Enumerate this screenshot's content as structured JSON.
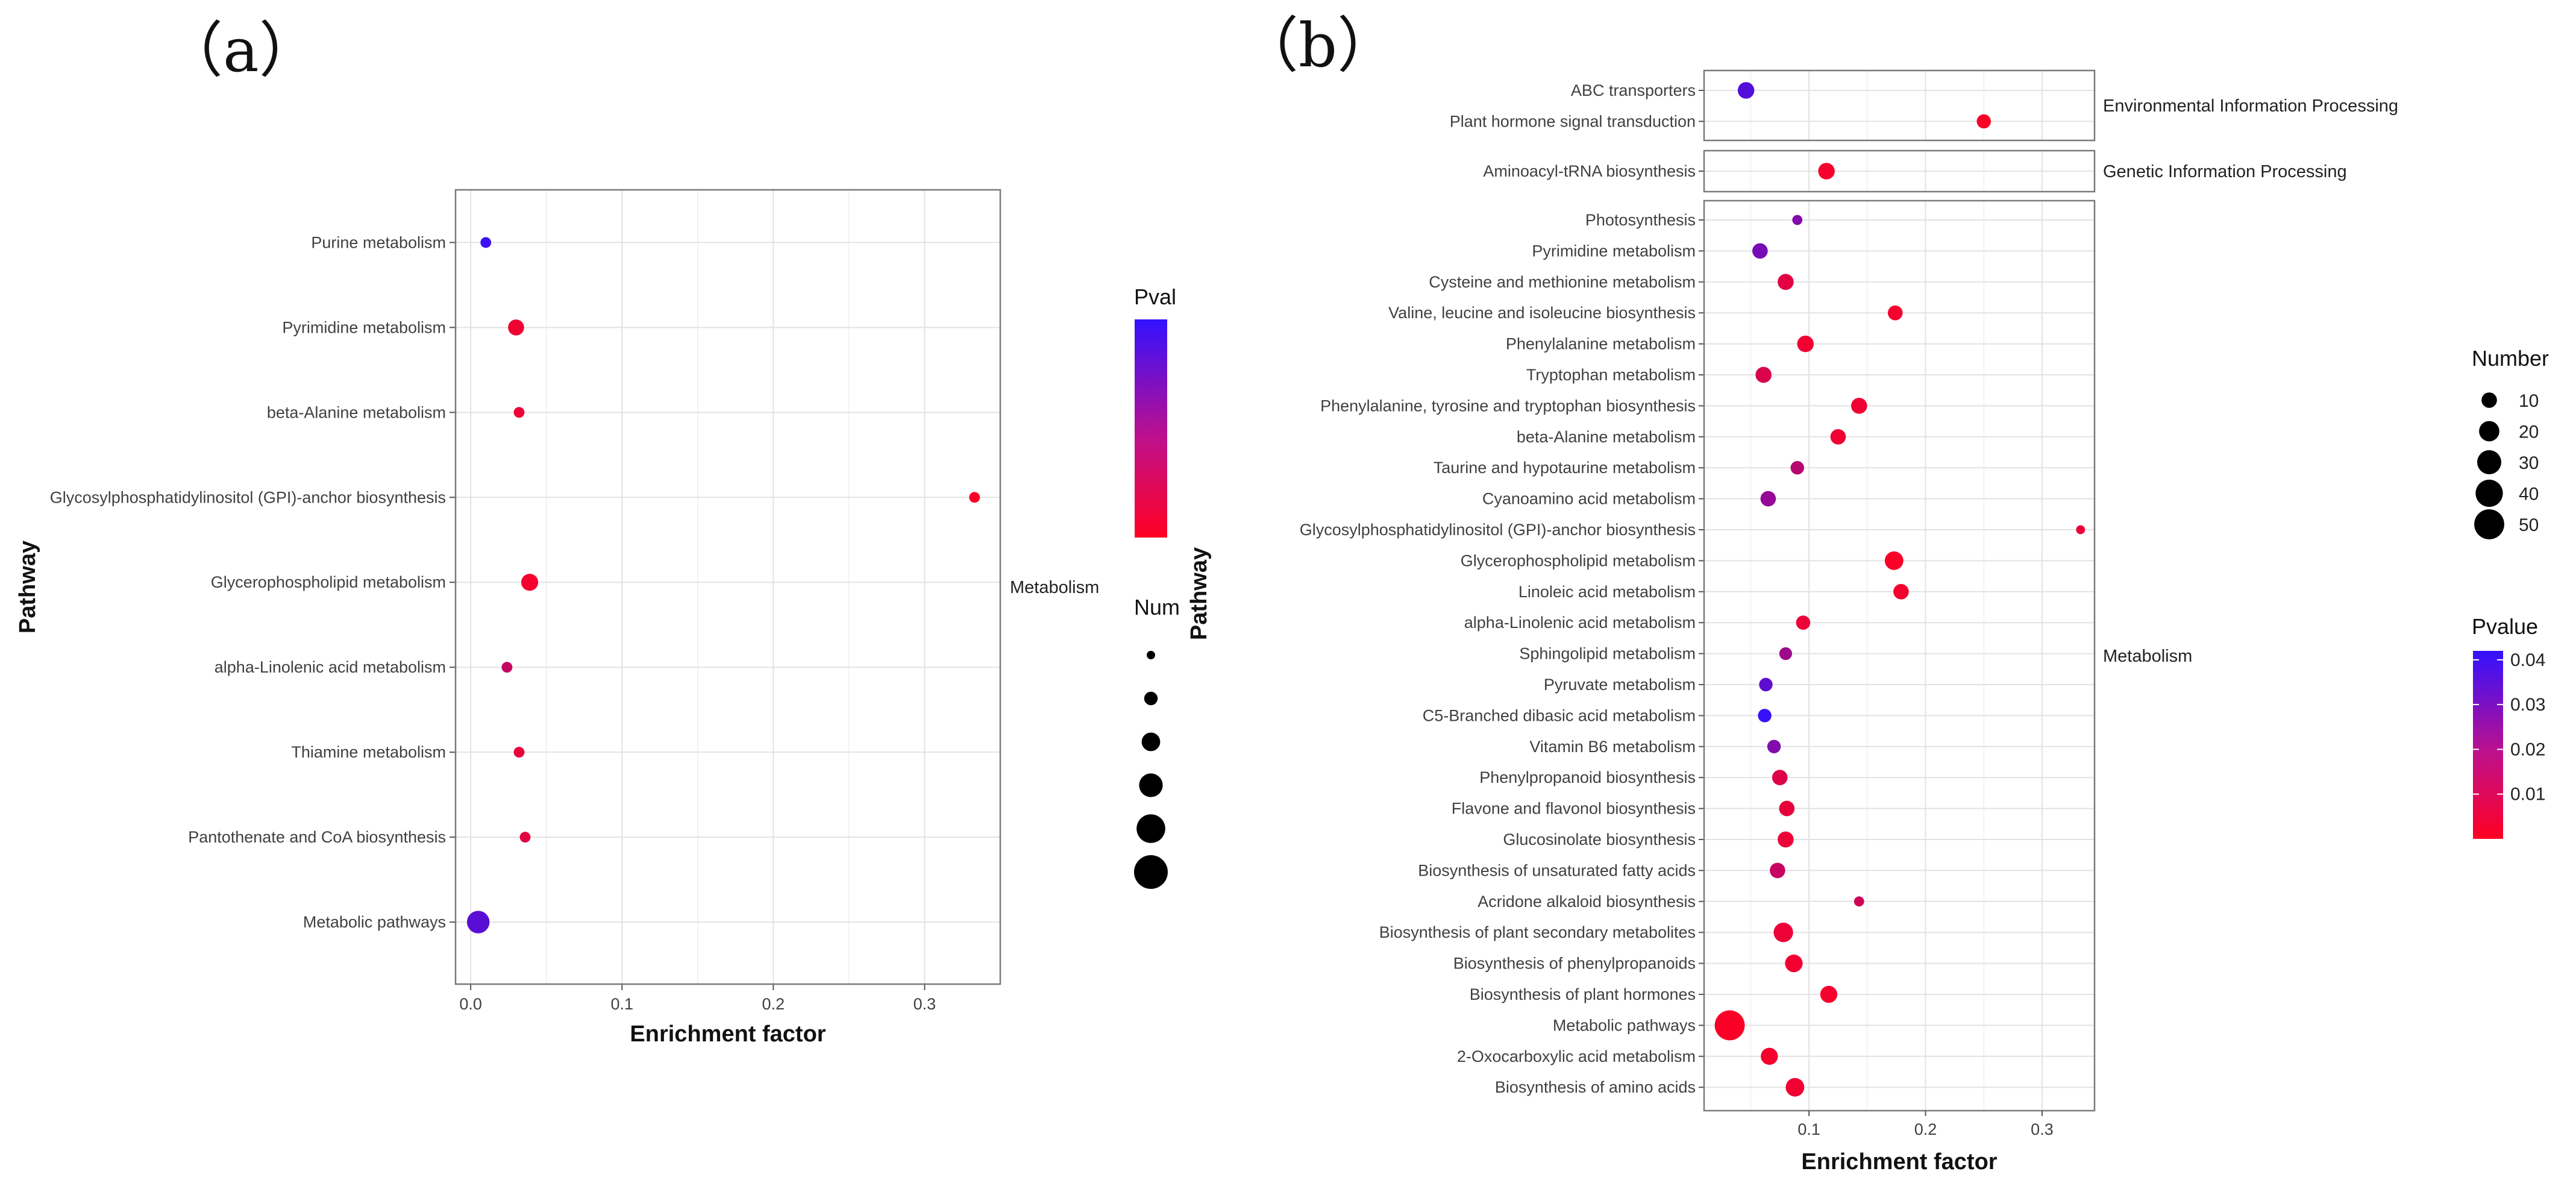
{
  "chart_data": [
    {
      "panel_label": "（a）",
      "type": "scatter",
      "xlabel": "Enrichment factor",
      "ylabel": "Pathway",
      "xlim": [
        -0.01,
        0.35
      ],
      "xticks": [
        "0.0",
        "0.1",
        "0.2",
        "0.3"
      ],
      "xtick_values": [
        0,
        0.1,
        0.2,
        0.3
      ],
      "facet": "Metabolism",
      "pathways": [
        {
          "name": "Purine metabolism",
          "x": 0.01,
          "number": 2,
          "pvalue": 0.04
        },
        {
          "name": "Pyrimidine metabolism",
          "x": 0.03,
          "number": 6,
          "pvalue": 0.003
        },
        {
          "name": "beta-Alanine metabolism",
          "x": 0.032,
          "number": 2,
          "pvalue": 0.004
        },
        {
          "name": "Glycosylphosphatidylinositol (GPI)-anchor biosynthesis",
          "x": 0.333,
          "number": 2,
          "pvalue": 0.001
        },
        {
          "name": "Glycerophospholipid metabolism",
          "x": 0.039,
          "number": 7,
          "pvalue": 0.002
        },
        {
          "name": "alpha-Linolenic acid metabolism",
          "x": 0.024,
          "number": 2,
          "pvalue": 0.012
        },
        {
          "name": "Thiamine metabolism",
          "x": 0.032,
          "number": 2,
          "pvalue": 0.005
        },
        {
          "name": "Pantothenate and CoA biosynthesis",
          "x": 0.036,
          "number": 2,
          "pvalue": 0.006
        },
        {
          "name": "Metabolic pathways",
          "x": 0.005,
          "number": 14,
          "pvalue": 0.034
        }
      ],
      "legend_color_title": "Pval",
      "legend_size_title": "Num",
      "legend_size_count": 6
    },
    {
      "panel_label": "（b）",
      "type": "scatter",
      "xlabel": "Enrichment factor",
      "ylabel": "Pathway",
      "xlim": [
        0.01,
        0.345
      ],
      "xticks": [
        "0.1",
        "0.2",
        "0.3"
      ],
      "xtick_values": [
        0.1,
        0.2,
        0.3
      ],
      "facets": [
        {
          "name": "Environmental Information Processing",
          "pathways": [
            {
              "name": "ABC transporters",
              "x": 0.046,
              "number": 12,
              "pvalue": 0.035
            },
            {
              "name": "Plant hormone signal transduction",
              "x": 0.25,
              "number": 8,
              "pvalue": 0.001
            }
          ]
        },
        {
          "name": "Genetic Information Processing",
          "pathways": [
            {
              "name": "Aminoacyl-tRNA biosynthesis",
              "x": 0.115,
              "number": 12,
              "pvalue": 0.002
            }
          ]
        },
        {
          "name": "Metabolism",
          "pathways": [
            {
              "name": "Photosynthesis",
              "x": 0.09,
              "number": 3,
              "pvalue": 0.026
            },
            {
              "name": "Pyrimidine metabolism",
              "x": 0.058,
              "number": 10,
              "pvalue": 0.028
            },
            {
              "name": "Cysteine and methionine metabolism",
              "x": 0.08,
              "number": 11,
              "pvalue": 0.006
            },
            {
              "name": "Valine, leucine and isoleucine biosynthesis",
              "x": 0.174,
              "number": 9,
              "pvalue": 0.002
            },
            {
              "name": "Phenylalanine metabolism",
              "x": 0.097,
              "number": 12,
              "pvalue": 0.003
            },
            {
              "name": "Tryptophan metabolism",
              "x": 0.061,
              "number": 11,
              "pvalue": 0.008
            },
            {
              "name": "Phenylalanine, tyrosine and tryptophan biosynthesis",
              "x": 0.143,
              "number": 11,
              "pvalue": 0.003
            },
            {
              "name": "beta-Alanine metabolism",
              "x": 0.125,
              "number": 10,
              "pvalue": 0.003
            },
            {
              "name": "Taurine and hypotaurine metabolism",
              "x": 0.09,
              "number": 7,
              "pvalue": 0.015
            },
            {
              "name": "Cyanoamino acid metabolism",
              "x": 0.065,
              "number": 10,
              "pvalue": 0.022
            },
            {
              "name": "Glycosylphosphatidylinositol (GPI)-anchor biosynthesis",
              "x": 0.333,
              "number": 2,
              "pvalue": 0.004
            },
            {
              "name": "Glycerophospholipid metabolism",
              "x": 0.173,
              "number": 16,
              "pvalue": 0.001
            },
            {
              "name": "Linoleic acid metabolism",
              "x": 0.179,
              "number": 10,
              "pvalue": 0.002
            },
            {
              "name": "alpha-Linolenic acid metabolism",
              "x": 0.095,
              "number": 8,
              "pvalue": 0.004
            },
            {
              "name": "Sphingolipid metabolism",
              "x": 0.08,
              "number": 6,
              "pvalue": 0.02
            },
            {
              "name": "Pyruvate metabolism",
              "x": 0.063,
              "number": 7,
              "pvalue": 0.033
            },
            {
              "name": "C5-Branched dibasic acid metabolism",
              "x": 0.062,
              "number": 7,
              "pvalue": 0.041
            },
            {
              "name": "Vitamin B6 metabolism",
              "x": 0.07,
              "number": 7,
              "pvalue": 0.026
            },
            {
              "name": "Phenylpropanoid biosynthesis",
              "x": 0.075,
              "number": 10,
              "pvalue": 0.007
            },
            {
              "name": "Flavone and flavonol biosynthesis",
              "x": 0.081,
              "number": 10,
              "pvalue": 0.005
            },
            {
              "name": "Glucosinolate biosynthesis",
              "x": 0.08,
              "number": 11,
              "pvalue": 0.004
            },
            {
              "name": "Biosynthesis of unsaturated fatty acids",
              "x": 0.073,
              "number": 10,
              "pvalue": 0.012
            },
            {
              "name": "Acridone alkaloid biosynthesis",
              "x": 0.143,
              "number": 3,
              "pvalue": 0.01
            },
            {
              "name": "Biosynthesis of plant secondary metabolites",
              "x": 0.078,
              "number": 18,
              "pvalue": 0.004
            },
            {
              "name": "Biosynthesis of phenylpropanoids",
              "x": 0.087,
              "number": 14,
              "pvalue": 0.003
            },
            {
              "name": "Biosynthesis of plant hormones",
              "x": 0.117,
              "number": 13,
              "pvalue": 0.002
            },
            {
              "name": "Metabolic pathways",
              "x": 0.032,
              "number": 50,
              "pvalue": 0.001
            },
            {
              "name": "2-Oxocarboxylic acid metabolism",
              "x": 0.066,
              "number": 13,
              "pvalue": 0.002
            },
            {
              "name": "Biosynthesis of amino acids",
              "x": 0.088,
              "number": 16,
              "pvalue": 0.003
            }
          ]
        }
      ],
      "legend_size_title": "Number",
      "legend_size_values": [
        10,
        20,
        30,
        40,
        50
      ],
      "legend_color_title": "Pvalue",
      "legend_color_ticks": [
        "0.04",
        "0.03",
        "0.02",
        "0.01"
      ],
      "legend_color_tick_values": [
        0.04,
        0.03,
        0.02,
        0.01
      ],
      "color_low": "#ff0022",
      "color_high": "#3311ff",
      "pvalue_range": [
        0.0,
        0.042
      ]
    }
  ]
}
